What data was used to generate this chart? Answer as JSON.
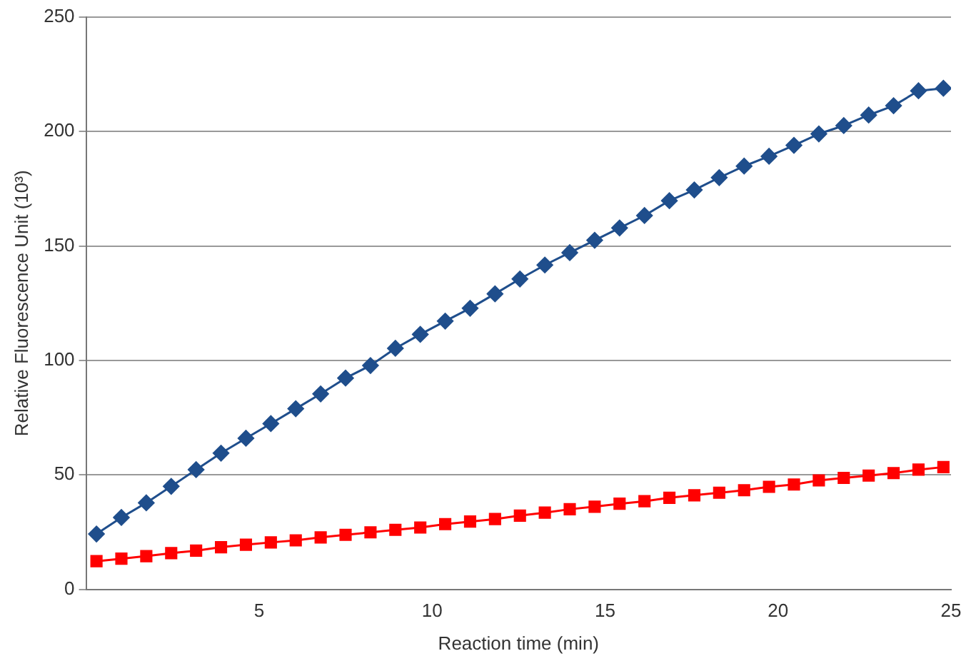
{
  "chart_data": {
    "type": "line",
    "xlabel": "Reaction time (min)",
    "ylabel": "Relative Fluorescence Unit (10³)",
    "x": [
      0.3,
      1.02,
      1.74,
      2.46,
      3.18,
      3.9,
      4.62,
      5.34,
      6.06,
      6.78,
      7.5,
      8.22,
      8.94,
      9.66,
      10.38,
      11.1,
      11.82,
      12.54,
      13.26,
      13.98,
      14.7,
      15.42,
      16.14,
      16.86,
      17.58,
      18.3,
      19.02,
      19.74,
      20.46,
      21.18,
      21.9,
      22.62,
      23.34,
      24.06,
      24.78
    ],
    "series": [
      {
        "color": "#1f4e8c",
        "marker": "diamond",
        "values": [
          24.2,
          31.4,
          37.8,
          45.0,
          52.3,
          59.5,
          66.0,
          72.4,
          78.9,
          85.4,
          92.3,
          97.8,
          105.3,
          111.4,
          117.2,
          122.8,
          129.1,
          135.6,
          141.7,
          147.1,
          152.5,
          157.9,
          163.3,
          169.8,
          174.5,
          179.9,
          184.9,
          189.2,
          194.0,
          199.0,
          202.6,
          207.2,
          211.3,
          217.8,
          218.9
        ]
      },
      {
        "color": "#ff0000",
        "marker": "square",
        "values": [
          12.3,
          13.4,
          14.5,
          15.8,
          16.9,
          18.4,
          19.5,
          20.5,
          21.4,
          22.7,
          23.8,
          24.9,
          26.0,
          27.0,
          28.5,
          29.6,
          30.7,
          32.2,
          33.5,
          35.0,
          36.1,
          37.4,
          38.5,
          40.0,
          41.1,
          42.2,
          43.3,
          44.8,
          45.8,
          47.6,
          48.7,
          49.7,
          50.8,
          52.3,
          53.4
        ]
      }
    ],
    "xlim": [
      0,
      25
    ],
    "xticks": [
      5,
      10,
      15,
      20,
      25
    ],
    "ylim": [
      0,
      250
    ],
    "yticks": [
      0,
      50,
      100,
      150,
      200,
      250
    ],
    "grid": "y",
    "legend": false
  }
}
